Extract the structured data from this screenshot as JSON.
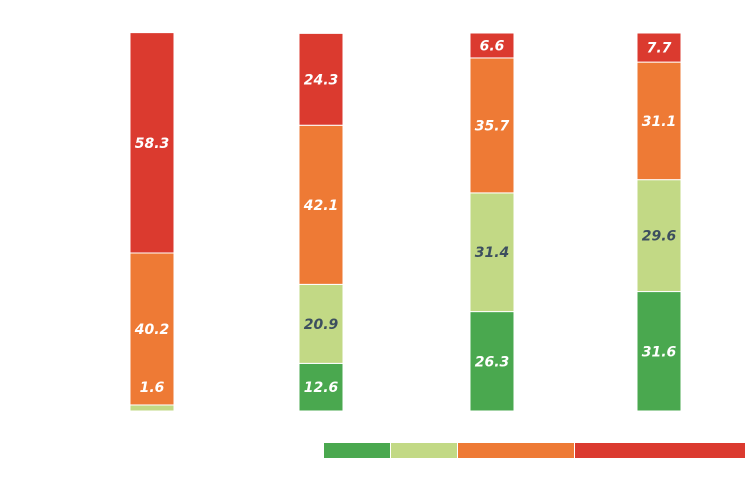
{
  "chart_data": {
    "type": "bar",
    "stacked": true,
    "categories": [
      "",
      "",
      "",
      ""
    ],
    "title": "",
    "xlabel": "",
    "ylabel": "",
    "ylim": [
      0,
      100
    ],
    "grid": false,
    "legend": "bottom-right",
    "series": [
      {
        "color": "#4aa84f",
        "label_color": "#ffffff",
        "values": [
          0,
          12.6,
          26.3,
          31.6
        ],
        "labels": [
          "",
          "12.6",
          "26.3",
          "31.6"
        ]
      },
      {
        "color": "#c2d985",
        "label_color": "#3d4f5f",
        "values": [
          1.6,
          20.9,
          31.4,
          29.6
        ],
        "labels": [
          "1.6",
          "20.9",
          "31.4",
          "29.6"
        ]
      },
      {
        "color": "#ee7a35",
        "label_color": "#ffffff",
        "values": [
          40.2,
          42.1,
          35.7,
          31.1
        ],
        "labels": [
          "40.2",
          "42.1",
          "35.7",
          "31.1"
        ]
      },
      {
        "color": "#db3a2f",
        "label_color": "#ffffff",
        "values": [
          58.3,
          24.3,
          6.6,
          7.7
        ],
        "labels": [
          "58.3",
          "24.3",
          "6.6",
          "7.7"
        ]
      }
    ]
  }
}
